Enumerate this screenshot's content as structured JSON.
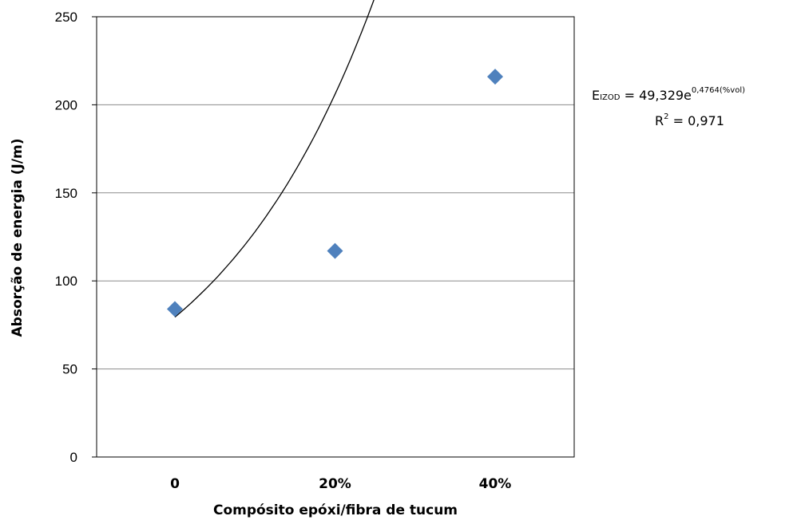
{
  "chart_data": {
    "type": "scatter",
    "categories": [
      "0",
      "20%",
      "40%"
    ],
    "x": [
      0,
      20,
      40
    ],
    "series": [
      {
        "values": [
          84,
          117,
          216
        ],
        "color": "#4f81bd",
        "marker": "diamond"
      }
    ],
    "trendline": {
      "type": "exponential",
      "coefficient": 49.329,
      "exponent": 0.4764,
      "color": "#000000",
      "equation_prefix": "E",
      "equation_subscript": "IZOD",
      "equation_main": " = 49,329e",
      "equation_sup": "0,4764(%vol)",
      "r2_label": "R",
      "r2_sup": "2",
      "r2_value": " = 0,971"
    },
    "title": "",
    "xlabel": "Compósito epóxi/fibra de tucum",
    "ylabel": "Absorção de energia (J/m)",
    "ylim": [
      0,
      250
    ],
    "yticks": [
      0,
      50,
      100,
      150,
      200,
      250
    ],
    "grid": true
  }
}
